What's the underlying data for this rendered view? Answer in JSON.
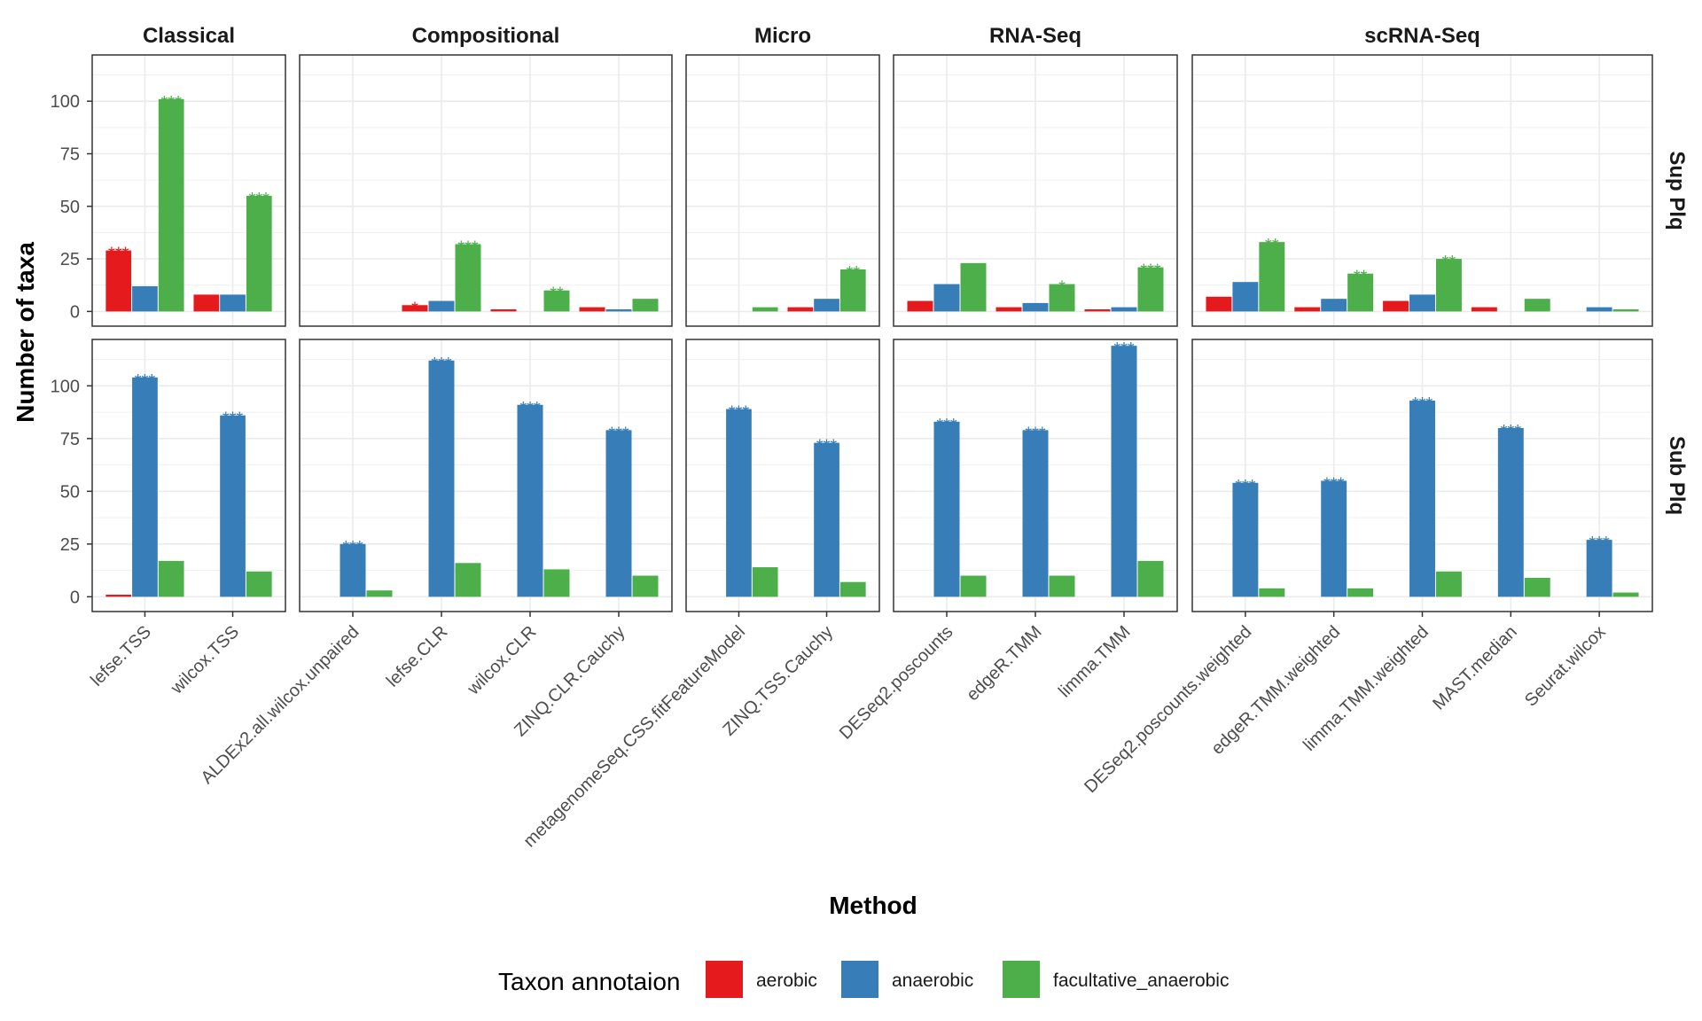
{
  "chart_data": {
    "type": "bar",
    "xlabel": "Method",
    "ylabel": "Number of taxa",
    "ylim": [
      -7,
      122
    ],
    "yticks": [
      0,
      25,
      50,
      75,
      100
    ],
    "grid": true,
    "legend": {
      "title": "Taxon annotaion",
      "position": "bottom",
      "items": [
        {
          "label": "aerobic",
          "color": "#E41A1C"
        },
        {
          "label": "anaerobic",
          "color": "#377EB8"
        },
        {
          "label": "facultative_anaerobic",
          "color": "#4DAF4A"
        }
      ]
    },
    "series_names": [
      "aerobic",
      "anaerobic",
      "facultative_anaerobic"
    ],
    "row_labels": [
      "Sup Plq",
      "Sub Plq"
    ],
    "columns": [
      {
        "name": "Classical",
        "methods": [
          "lefse.TSS",
          "wilcox.TSS"
        ]
      },
      {
        "name": "Compositional",
        "methods": [
          "ALDEx2.all.wilcox.unpaired",
          "lefse.CLR",
          "wilcox.CLR",
          "ZINQ.CLR.Cauchy"
        ]
      },
      {
        "name": "Micro",
        "methods": [
          "metagenomeSeq.CSS.fitFeatureModel",
          "ZINQ.TSS.Cauchy"
        ]
      },
      {
        "name": "RNA-Seq",
        "methods": [
          "DESeq2.poscounts",
          "edgeR.TMM",
          "limma.TMM"
        ]
      },
      {
        "name": "scRNA-Seq",
        "methods": [
          "DESeq2.poscounts.weighted",
          "edgeR.TMM.weighted",
          "limma.TMM.weighted",
          "MAST.median",
          "Seurat.wilcox"
        ]
      }
    ],
    "panels": [
      {
        "row": "Sup Plq",
        "column": "Classical",
        "values": [
          [
            29,
            12,
            101
          ],
          [
            8,
            8,
            55
          ]
        ],
        "significance": [
          [
            "***",
            "",
            "***"
          ],
          [
            "",
            "",
            "***"
          ]
        ]
      },
      {
        "row": "Sup Plq",
        "column": "Compositional",
        "values": [
          [
            0,
            0,
            0
          ],
          [
            3,
            5,
            32
          ],
          [
            1,
            0,
            10
          ],
          [
            2,
            1,
            6
          ]
        ],
        "significance": [
          [
            "",
            "",
            ""
          ],
          [
            "*",
            "",
            "***"
          ],
          [
            "",
            "",
            "**"
          ],
          [
            "",
            "",
            ""
          ]
        ]
      },
      {
        "row": "Sup Plq",
        "column": "Micro",
        "values": [
          [
            0,
            0,
            2
          ],
          [
            2,
            6,
            20
          ]
        ],
        "significance": [
          [
            "",
            "",
            ""
          ],
          [
            "",
            "",
            "**"
          ]
        ]
      },
      {
        "row": "Sup Plq",
        "column": "RNA-Seq",
        "values": [
          [
            5,
            13,
            23
          ],
          [
            2,
            4,
            13
          ],
          [
            1,
            2,
            21
          ]
        ],
        "significance": [
          [
            "",
            "",
            ""
          ],
          [
            "",
            "",
            "*"
          ],
          [
            "",
            "",
            "***"
          ]
        ]
      },
      {
        "row": "Sup Plq",
        "column": "scRNA-Seq",
        "values": [
          [
            7,
            14,
            33
          ],
          [
            2,
            6,
            18
          ],
          [
            5,
            8,
            25
          ],
          [
            2,
            0,
            6
          ],
          [
            0,
            2,
            1
          ]
        ],
        "significance": [
          [
            "",
            "",
            "**"
          ],
          [
            "",
            "",
            "**"
          ],
          [
            "",
            "",
            "**"
          ],
          [
            "",
            "",
            ""
          ],
          [
            "",
            "",
            ""
          ]
        ]
      },
      {
        "row": "Sub Plq",
        "column": "Classical",
        "values": [
          [
            1,
            104,
            17
          ],
          [
            0,
            86,
            12
          ]
        ],
        "significance": [
          [
            "",
            "***",
            ""
          ],
          [
            "",
            "***",
            ""
          ]
        ]
      },
      {
        "row": "Sub Plq",
        "column": "Compositional",
        "values": [
          [
            0,
            25,
            3
          ],
          [
            0,
            112,
            16
          ],
          [
            0,
            91,
            13
          ],
          [
            0,
            79,
            10
          ]
        ],
        "significance": [
          [
            "",
            "***",
            ""
          ],
          [
            "",
            "***",
            ""
          ],
          [
            "",
            "***",
            ""
          ],
          [
            "",
            "***",
            ""
          ]
        ]
      },
      {
        "row": "Sub Plq",
        "column": "Micro",
        "values": [
          [
            0,
            89,
            14
          ],
          [
            0,
            73,
            7
          ]
        ],
        "significance": [
          [
            "",
            "***",
            ""
          ],
          [
            "",
            "***",
            ""
          ]
        ]
      },
      {
        "row": "Sub Plq",
        "column": "RNA-Seq",
        "values": [
          [
            0,
            83,
            10
          ],
          [
            0,
            79,
            10
          ],
          [
            0,
            119,
            17
          ]
        ],
        "significance": [
          [
            "",
            "***",
            ""
          ],
          [
            "",
            "***",
            ""
          ],
          [
            "",
            "***",
            ""
          ]
        ]
      },
      {
        "row": "Sub Plq",
        "column": "scRNA-Seq",
        "values": [
          [
            0,
            54,
            4
          ],
          [
            0,
            55,
            4
          ],
          [
            0,
            93,
            12
          ],
          [
            0,
            80,
            9
          ],
          [
            0,
            27,
            2
          ]
        ],
        "significance": [
          [
            "",
            "***",
            ""
          ],
          [
            "",
            "***",
            ""
          ],
          [
            "",
            "***",
            ""
          ],
          [
            "",
            "***",
            ""
          ],
          [
            "",
            "***",
            ""
          ]
        ]
      }
    ]
  }
}
